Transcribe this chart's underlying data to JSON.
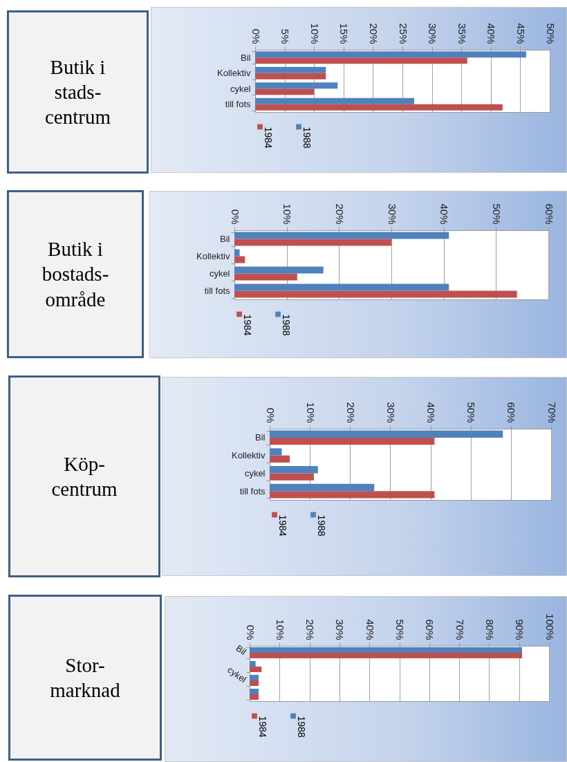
{
  "chart_data": [
    {
      "type": "bar",
      "orientation": "horizontal",
      "title": "Butik i\nstads-\ncentrum",
      "categories": [
        "Bil",
        "Kollektiv",
        "cykel",
        "till fots"
      ],
      "series": [
        {
          "name": "1984",
          "color": "#c0504d",
          "values": [
            36,
            12,
            10,
            42
          ]
        },
        {
          "name": "1988",
          "color": "#4f81bd",
          "values": [
            46,
            12,
            14,
            27
          ]
        }
      ],
      "xlim": [
        0,
        50
      ],
      "xticks": [
        {
          "value": 0,
          "label": "0%"
        },
        {
          "value": 5,
          "label": "5%"
        },
        {
          "value": 10,
          "label": "10%"
        },
        {
          "value": 15,
          "label": "15%"
        },
        {
          "value": 20,
          "label": "20%"
        },
        {
          "value": 25,
          "label": "25%"
        },
        {
          "value": 30,
          "label": "30%"
        },
        {
          "value": 35,
          "label": "35%"
        },
        {
          "value": 40,
          "label": "40%"
        },
        {
          "value": 45,
          "label": "45%"
        },
        {
          "value": 50,
          "label": "50%"
        }
      ],
      "grid": "x",
      "legend": "bottom"
    },
    {
      "type": "bar",
      "orientation": "horizontal",
      "title": "Butik i\nbostads-\nområde",
      "categories": [
        "Bil",
        "Kollektiv",
        "cykel",
        "till fots"
      ],
      "series": [
        {
          "name": "1984",
          "color": "#c0504d",
          "values": [
            30,
            2,
            12,
            54
          ]
        },
        {
          "name": "1988",
          "color": "#4f81bd",
          "values": [
            41,
            1,
            17,
            41
          ]
        }
      ],
      "xlim": [
        0,
        60
      ],
      "xticks": [
        {
          "value": 0,
          "label": "0%"
        },
        {
          "value": 10,
          "label": "10%"
        },
        {
          "value": 20,
          "label": "20%"
        },
        {
          "value": 30,
          "label": "30%"
        },
        {
          "value": 40,
          "label": "40%"
        },
        {
          "value": 50,
          "label": "50%"
        },
        {
          "value": 60,
          "label": "60%"
        }
      ],
      "grid": "x",
      "legend": "bottom"
    },
    {
      "type": "bar",
      "orientation": "horizontal",
      "title": "Köp-\ncentrum",
      "categories": [
        "Bil",
        "Kollektiv",
        "cykel",
        "till fots"
      ],
      "series": [
        {
          "name": "1984",
          "color": "#c0504d",
          "values": [
            41,
            5,
            11,
            41
          ]
        },
        {
          "name": "1988",
          "color": "#4f81bd",
          "values": [
            58,
            3,
            12,
            26
          ]
        }
      ],
      "xlim": [
        0,
        70
      ],
      "xticks": [
        {
          "value": 0,
          "label": "0%"
        },
        {
          "value": 10,
          "label": "10%"
        },
        {
          "value": 20,
          "label": "20%"
        },
        {
          "value": 30,
          "label": "30%"
        },
        {
          "value": 40,
          "label": "40%"
        },
        {
          "value": 50,
          "label": "50%"
        },
        {
          "value": 60,
          "label": "60%"
        },
        {
          "value": 70,
          "label": "70%"
        }
      ],
      "grid": "x",
      "legend": "bottom"
    },
    {
      "type": "bar",
      "orientation": "horizontal",
      "title": "Stor-\nmarknad",
      "categories": [
        "Bil",
        null,
        "cykel",
        null
      ],
      "series": [
        {
          "name": "1984",
          "color": "#c0504d",
          "values": [
            91,
            4,
            3,
            3
          ]
        },
        {
          "name": "1988",
          "color": "#4f81bd",
          "values": [
            91,
            2,
            3,
            3
          ]
        }
      ],
      "xlim": [
        0,
        100
      ],
      "xticks": [
        {
          "value": 0,
          "label": "0%"
        },
        {
          "value": 10,
          "label": "10%"
        },
        {
          "value": 20,
          "label": "20%"
        },
        {
          "value": 30,
          "label": "30%"
        },
        {
          "value": 40,
          "label": "40%"
        },
        {
          "value": 50,
          "label": "50%"
        },
        {
          "value": 60,
          "label": "60%"
        },
        {
          "value": 70,
          "label": "70%"
        },
        {
          "value": 80,
          "label": "80%"
        },
        {
          "value": 90,
          "label": "90%"
        },
        {
          "value": 100,
          "label": "100%"
        }
      ],
      "grid": "x",
      "legend": "bottom"
    }
  ]
}
